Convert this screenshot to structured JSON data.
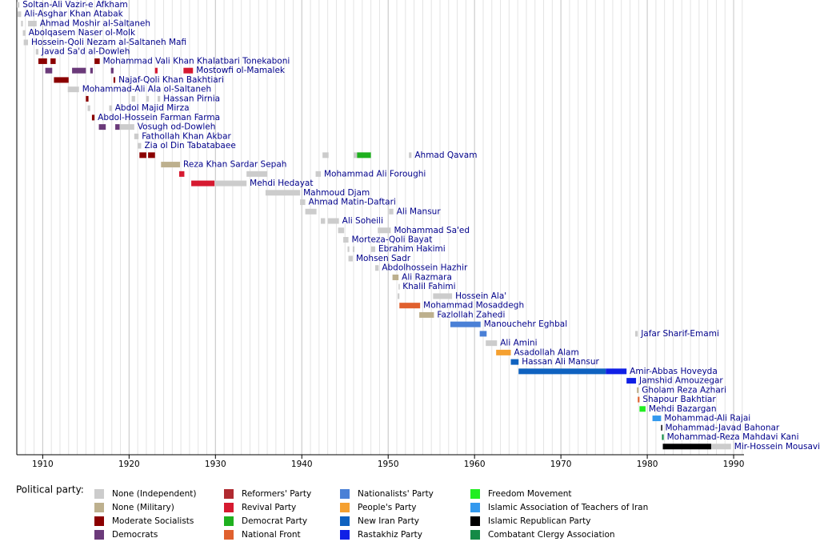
{
  "chart_data": {
    "type": "timeline",
    "xlim": [
      1907,
      1991.2
    ],
    "xticks": [
      1910,
      1920,
      1930,
      1940,
      1950,
      1960,
      1970,
      1980,
      1990
    ],
    "legend_title": "Political party:",
    "parties": [
      {
        "name": "None (Independent)",
        "color": "#cccccc"
      },
      {
        "name": "None (Military)",
        "color": "#bdb08e"
      },
      {
        "name": "Moderate Socialists",
        "color": "#8b0000"
      },
      {
        "name": "Democrats",
        "color": "#6b3a7a"
      },
      {
        "name": "Reformers' Party",
        "color": "#b02a30"
      },
      {
        "name": "Revival Party",
        "color": "#d61a30"
      },
      {
        "name": "Democrat Party",
        "color": "#1fb01f"
      },
      {
        "name": "National Front",
        "color": "#e0602e"
      },
      {
        "name": "Nationalists' Party",
        "color": "#4a80d6"
      },
      {
        "name": "People's Party",
        "color": "#f5a030"
      },
      {
        "name": "New Iran Party",
        "color": "#0f62c0"
      },
      {
        "name": "Rastakhiz Party",
        "color": "#1020e6"
      },
      {
        "name": "Freedom Movement",
        "color": "#22ee22"
      },
      {
        "name": "Islamic Association of Teachers of Iran",
        "color": "#3399ee"
      },
      {
        "name": "Islamic Republican Party",
        "color": "#000000"
      },
      {
        "name": "Combatant Clergy Association",
        "color": "#138a46"
      }
    ],
    "rows": [
      {
        "name": "Soltan-Ali Vazir-e Afkham",
        "terms": [
          {
            "start": 1907,
            "end": 1907.3,
            "party": 0
          }
        ]
      },
      {
        "name": "Ali-Asghar Khan Atabak",
        "terms": [
          {
            "start": 1907.1,
            "end": 1907.5,
            "party": 0
          }
        ]
      },
      {
        "name": "Ahmad Moshir al-Saltaneh",
        "terms": [
          {
            "start": 1907.5,
            "end": 1907.7,
            "party": 0
          },
          {
            "start": 1908.3,
            "end": 1909.3,
            "party": 0
          }
        ]
      },
      {
        "name": "Abolqasem Naser ol-Molk",
        "terms": [
          {
            "start": 1907.7,
            "end": 1908,
            "party": 0
          }
        ]
      },
      {
        "name": "Hossein-Qoli Nezam al-Saltaneh Mafi",
        "terms": [
          {
            "start": 1907.8,
            "end": 1908.3,
            "party": 0
          }
        ]
      },
      {
        "name": "Javad Sa'd al-Dowleh",
        "terms": [
          {
            "start": 1909.2,
            "end": 1909.5,
            "party": 0
          }
        ]
      },
      {
        "name": "Mohammad Vali Khan Khalatbari Tonekaboni",
        "terms": [
          {
            "start": 1909.5,
            "end": 1910.5,
            "party": 2
          },
          {
            "start": 1910.9,
            "end": 1911.5,
            "party": 2
          },
          {
            "start": 1916,
            "end": 1916.6,
            "party": 2
          }
        ]
      },
      {
        "name": "Mostowfi ol-Mamalek",
        "terms": [
          {
            "start": 1910.3,
            "end": 1911.1,
            "party": 3
          },
          {
            "start": 1913.4,
            "end": 1915,
            "party": 3
          },
          {
            "start": 1915.5,
            "end": 1915.8,
            "party": 3
          },
          {
            "start": 1917.9,
            "end": 1918.2,
            "party": 3
          },
          {
            "start": 1923,
            "end": 1923.3,
            "party": 5
          },
          {
            "start": 1926.3,
            "end": 1927.4,
            "party": 5
          }
        ]
      },
      {
        "name": "Najaf-Qoli Khan Bakhtiari",
        "terms": [
          {
            "start": 1911.3,
            "end": 1913,
            "party": 2
          },
          {
            "start": 1918.2,
            "end": 1918.4,
            "party": 2
          }
        ]
      },
      {
        "name": "Mohammad-Ali Ala ol-Saltaneh",
        "terms": [
          {
            "start": 1912.9,
            "end": 1914.2,
            "party": 0
          }
        ]
      },
      {
        "name": "Hassan Pirnia",
        "terms": [
          {
            "start": 1915,
            "end": 1915.3,
            "party": 2
          },
          {
            "start": 1920.3,
            "end": 1920.7,
            "party": 0
          },
          {
            "start": 1922,
            "end": 1922.3,
            "party": 0
          },
          {
            "start": 1923.3,
            "end": 1923.6,
            "party": 0
          }
        ]
      },
      {
        "name": "Abdol Majid Mirza",
        "terms": [
          {
            "start": 1915.2,
            "end": 1915.5,
            "party": 0
          },
          {
            "start": 1917.7,
            "end": 1918,
            "party": 0
          }
        ]
      },
      {
        "name": "Abdol-Hossein Farman Farma",
        "terms": [
          {
            "start": 1915.7,
            "end": 1916,
            "party": 2
          }
        ]
      },
      {
        "name": "Vosugh od-Dowleh",
        "terms": [
          {
            "start": 1916.5,
            "end": 1917.3,
            "party": 3
          },
          {
            "start": 1918.4,
            "end": 1918.9,
            "party": 3
          },
          {
            "start": 1918.9,
            "end": 1920.6,
            "party": 0
          }
        ]
      },
      {
        "name": "Fathollah Khan Akbar",
        "terms": [
          {
            "start": 1920.6,
            "end": 1921.1,
            "party": 0
          }
        ]
      },
      {
        "name": "Zia ol Din Tabatabaee",
        "terms": [
          {
            "start": 1921,
            "end": 1921.4,
            "party": 0
          }
        ]
      },
      {
        "name": "Ahmad Qavam",
        "terms": [
          {
            "start": 1921.2,
            "end": 1922,
            "party": 2
          },
          {
            "start": 1922.2,
            "end": 1923,
            "party": 2
          },
          {
            "start": 1942.4,
            "end": 1943.1,
            "party": 0
          },
          {
            "start": 1946,
            "end": 1946.4,
            "party": 0
          },
          {
            "start": 1946.4,
            "end": 1948,
            "party": 6
          },
          {
            "start": 1952.4,
            "end": 1952.7,
            "party": 0
          }
        ]
      },
      {
        "name": "Reza Khan Sardar Sepah",
        "terms": [
          {
            "start": 1923.7,
            "end": 1925.9,
            "party": 1
          }
        ]
      },
      {
        "name": "Mohammad Ali Foroughi",
        "terms": [
          {
            "start": 1925.8,
            "end": 1926.4,
            "party": 5
          },
          {
            "start": 1933.6,
            "end": 1936,
            "party": 0
          },
          {
            "start": 1941.6,
            "end": 1942.2,
            "party": 0
          }
        ]
      },
      {
        "name": "Mehdi Hedayat",
        "terms": [
          {
            "start": 1927.2,
            "end": 1929.9,
            "party": 5
          },
          {
            "start": 1929.9,
            "end": 1933.6,
            "party": 0
          }
        ]
      },
      {
        "name": "Mahmoud Djam",
        "terms": [
          {
            "start": 1935.8,
            "end": 1939.8,
            "party": 0
          }
        ]
      },
      {
        "name": "Ahmad Matin-Daftari",
        "terms": [
          {
            "start": 1939.8,
            "end": 1940.4,
            "party": 0
          }
        ]
      },
      {
        "name": "Ali Mansur",
        "terms": [
          {
            "start": 1940.4,
            "end": 1941.7,
            "party": 0
          },
          {
            "start": 1950.1,
            "end": 1950.6,
            "party": 0
          }
        ]
      },
      {
        "name": "Ali Soheili",
        "terms": [
          {
            "start": 1942.2,
            "end": 1942.7,
            "party": 0
          },
          {
            "start": 1943,
            "end": 1944.3,
            "party": 0
          }
        ]
      },
      {
        "name": "Mohammad Sa'ed",
        "terms": [
          {
            "start": 1944.2,
            "end": 1944.9,
            "party": 0
          },
          {
            "start": 1948.8,
            "end": 1950.3,
            "party": 0
          }
        ]
      },
      {
        "name": "Morteza-Qoli Bayat",
        "terms": [
          {
            "start": 1944.8,
            "end": 1945.4,
            "party": 0
          }
        ]
      },
      {
        "name": "Ebrahim Hakimi",
        "terms": [
          {
            "start": 1945.3,
            "end": 1945.5,
            "party": 0
          },
          {
            "start": 1945.9,
            "end": 1946.1,
            "party": 0
          },
          {
            "start": 1948,
            "end": 1948.5,
            "party": 0
          }
        ]
      },
      {
        "name": "Mohsen Sadr",
        "terms": [
          {
            "start": 1945.4,
            "end": 1945.9,
            "party": 0
          }
        ]
      },
      {
        "name": "Abdolhossein Hazhir",
        "terms": [
          {
            "start": 1948.5,
            "end": 1948.9,
            "party": 0
          }
        ]
      },
      {
        "name": "Ali Razmara",
        "terms": [
          {
            "start": 1950.5,
            "end": 1951.2,
            "party": 1
          }
        ]
      },
      {
        "name": "Khalil Fahimi",
        "terms": [
          {
            "start": 1951.2,
            "end": 1951.3,
            "party": 0
          }
        ]
      },
      {
        "name": "Hossein Ala'",
        "terms": [
          {
            "start": 1951.1,
            "end": 1951.3,
            "party": 0
          },
          {
            "start": 1955.2,
            "end": 1957.4,
            "party": 0
          }
        ]
      },
      {
        "name": "Mohammad Mosaddegh",
        "terms": [
          {
            "start": 1951.3,
            "end": 1953.7,
            "party": 7
          }
        ]
      },
      {
        "name": "Fazlollah Zahedi",
        "terms": [
          {
            "start": 1953.6,
            "end": 1955.3,
            "party": 1
          }
        ]
      },
      {
        "name": "Manouchehr Eghbal",
        "terms": [
          {
            "start": 1957.2,
            "end": 1960.7,
            "party": 8
          }
        ]
      },
      {
        "name": "Jafar Sharif-Emami",
        "terms": [
          {
            "start": 1960.6,
            "end": 1961.4,
            "party": 8
          },
          {
            "start": 1978.6,
            "end": 1978.9,
            "party": 0
          }
        ]
      },
      {
        "name": "Ali Amini",
        "terms": [
          {
            "start": 1961.3,
            "end": 1962.6,
            "party": 0
          }
        ]
      },
      {
        "name": "Asadollah Alam",
        "terms": [
          {
            "start": 1962.5,
            "end": 1964.2,
            "party": 9
          }
        ]
      },
      {
        "name": "Hassan Ali Mansur",
        "terms": [
          {
            "start": 1964.2,
            "end": 1965.1,
            "party": 10
          }
        ]
      },
      {
        "name": "Amir-Abbas Hoveyda",
        "terms": [
          {
            "start": 1965.1,
            "end": 1975.2,
            "party": 10
          },
          {
            "start": 1975.2,
            "end": 1977.6,
            "party": 11
          }
        ]
      },
      {
        "name": "Jamshid Amouzegar",
        "terms": [
          {
            "start": 1977.6,
            "end": 1978.7,
            "party": 11
          }
        ]
      },
      {
        "name": "Gholam Reza Azhari",
        "terms": [
          {
            "start": 1978.8,
            "end": 1979,
            "party": 1
          }
        ]
      },
      {
        "name": "Shapour Bakhtiar",
        "terms": [
          {
            "start": 1978.9,
            "end": 1979.1,
            "party": 7
          }
        ]
      },
      {
        "name": "Mehdi Bazargan",
        "terms": [
          {
            "start": 1979.1,
            "end": 1979.8,
            "party": 12
          }
        ]
      },
      {
        "name": "Mohammad-Ali Rajai",
        "terms": [
          {
            "start": 1980.6,
            "end": 1981.6,
            "party": 13
          }
        ]
      },
      {
        "name": "Mohammad-Javad Bahonar",
        "terms": [
          {
            "start": 1981.6,
            "end": 1981.7,
            "party": 14
          }
        ]
      },
      {
        "name": "Mohammad-Reza Mahdavi Kani",
        "terms": [
          {
            "start": 1981.7,
            "end": 1981.9,
            "party": 15
          }
        ]
      },
      {
        "name": "Mir-Hossein Mousavi",
        "terms": [
          {
            "start": 1981.8,
            "end": 1987.4,
            "party": 14
          },
          {
            "start": 1987.4,
            "end": 1989.7,
            "party": 0
          }
        ]
      }
    ]
  }
}
